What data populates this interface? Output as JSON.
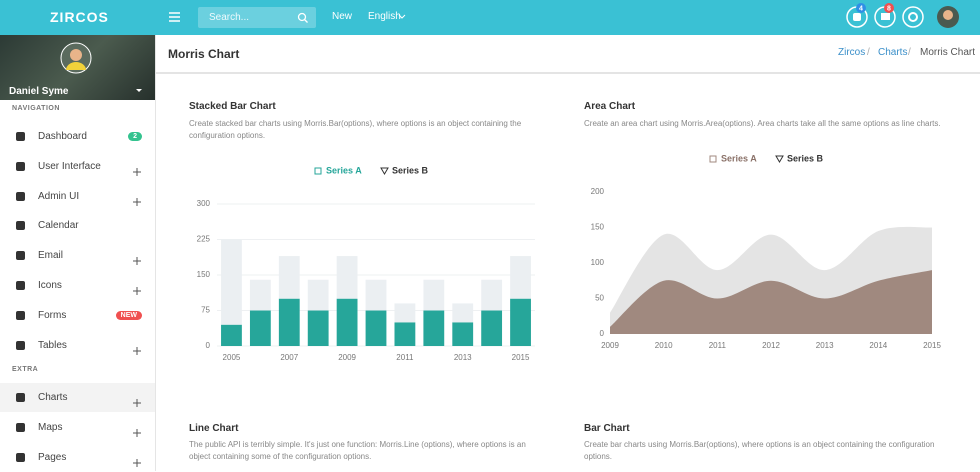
{
  "topbar": {
    "logo": "ZIRCOS",
    "search": "Search...",
    "links": [
      "New",
      "English"
    ],
    "badges": [
      "4",
      "8"
    ]
  },
  "sidebar": {
    "user": "Daniel Syme",
    "sections": [
      {
        "title": "NAVIGATION",
        "items": [
          {
            "label": "Dashboard",
            "badge": "2"
          },
          {
            "label": "User Interface"
          },
          {
            "label": "Admin UI"
          },
          {
            "label": "Calendar"
          },
          {
            "label": "Email"
          },
          {
            "label": "Icons"
          },
          {
            "label": "Forms",
            "badge": "NEW"
          },
          {
            "label": "Tables"
          }
        ]
      },
      {
        "title": "EXTRA",
        "items": [
          {
            "label": "Charts"
          },
          {
            "label": "Maps"
          },
          {
            "label": "Pages"
          }
        ]
      }
    ]
  },
  "header": {
    "title": "Morris Chart",
    "breadcrumb": [
      "Zircos",
      "Charts",
      "Morris Chart"
    ]
  },
  "cards": [
    {
      "title": "Stacked Bar Chart",
      "description": "Create stacked bar charts using Morris.Bar(options), where options is an object containing the configuration options."
    },
    {
      "title": "Area Chart",
      "description": "Create an area chart using Morris.Area(options). Area charts take all the same options as line charts."
    },
    {
      "title": "Line Chart",
      "description": "The public API is terribly simple. It's just one function: Morris.Line (options), where options is an object containing some of the configuration options."
    },
    {
      "title": "Bar Chart",
      "description": "Create bar charts using Morris.Bar(options), where options is an object containing the configuration options."
    }
  ],
  "chart_data": [
    {
      "type": "bar",
      "stacked": true,
      "categories": [
        "2005",
        null,
        "2007",
        null,
        "2009",
        null,
        "2011",
        null,
        "2013",
        null,
        "2015"
      ],
      "series": [
        {
          "name": "Series A",
          "color": "#26a69a",
          "values": [
            45,
            75,
            100,
            75,
            100,
            75,
            50,
            75,
            50,
            75,
            100
          ]
        },
        {
          "name": "Series B",
          "color": "#ebeff2",
          "values": [
            180,
            65,
            90,
            65,
            90,
            65,
            40,
            65,
            40,
            65,
            90
          ]
        }
      ],
      "ylim": [
        0,
        300
      ],
      "yticks": [
        0,
        75,
        150,
        225,
        300
      ],
      "grid": true
    },
    {
      "type": "area",
      "categories": [
        "2009",
        "2010",
        "2011",
        "2012",
        "2013",
        "2014",
        "2015"
      ],
      "series": [
        {
          "name": "Series A",
          "color": "#a0897f",
          "values": [
            10,
            75,
            50,
            75,
            50,
            75,
            90
          ]
        },
        {
          "name": "Series B",
          "color": "#e4e4e4",
          "values": [
            30,
            140,
            90,
            140,
            90,
            145,
            150
          ]
        }
      ],
      "ylim": [
        0,
        200
      ],
      "yticks": [
        0,
        50,
        100,
        150,
        200
      ],
      "grid": false
    }
  ]
}
